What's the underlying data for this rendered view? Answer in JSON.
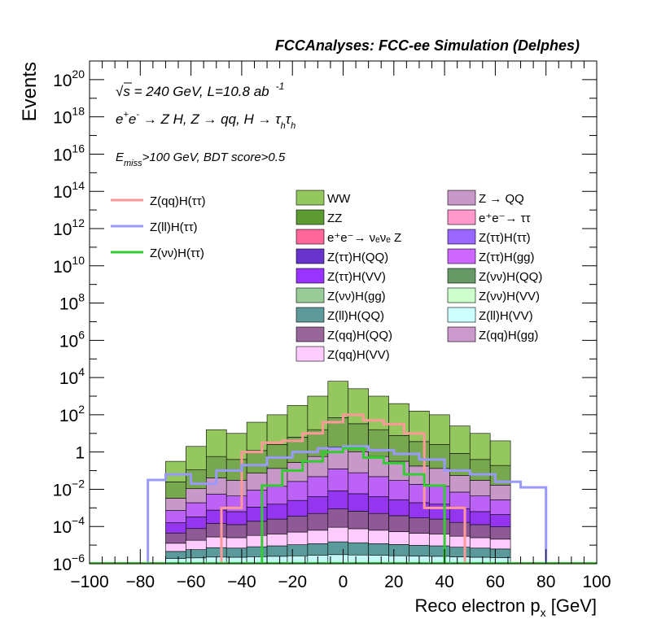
{
  "chart_data": {
    "type": "bar",
    "title": "FCCAnalyses: FCC-ee Simulation (Delphes)",
    "xlabel": "Reco electron p",
    "xlabel_sub": "x",
    "xlabel_unit": "[GeV]",
    "ylabel": "Events",
    "log_y": true,
    "xlim": [
      -100,
      100
    ],
    "ylim_exp": [
      -6,
      21
    ],
    "x_ticks": [
      -100,
      -80,
      -60,
      -40,
      -20,
      0,
      20,
      40,
      60,
      80,
      100
    ],
    "y_ticks": [
      {
        "label": "10",
        "sup": "−6",
        "exp": -6
      },
      {
        "label": "10",
        "sup": "−4",
        "exp": -4
      },
      {
        "label": "10",
        "sup": "−2",
        "exp": -2
      },
      {
        "label": "1",
        "sup": "",
        "exp": 0
      },
      {
        "label": "10",
        "sup": "2",
        "exp": 2
      },
      {
        "label": "10",
        "sup": "4",
        "exp": 4
      },
      {
        "label": "10",
        "sup": "6",
        "exp": 6
      },
      {
        "label": "10",
        "sup": "8",
        "exp": 8
      },
      {
        "label": "10",
        "sup": "10",
        "exp": 10
      },
      {
        "label": "10",
        "sup": "12",
        "exp": 12
      },
      {
        "label": "10",
        "sup": "14",
        "exp": 14
      },
      {
        "label": "10",
        "sup": "16",
        "exp": 16
      },
      {
        "label": "10",
        "sup": "18",
        "exp": 18
      },
      {
        "label": "10",
        "sup": "20",
        "exp": 20
      }
    ],
    "annotations": {
      "energy": {
        "sqrt": "√s",
        "text": " = 240 GeV, L=10.8 ab",
        "sup": "-1"
      },
      "process": {
        "a": "e",
        "a_sup": "+",
        "b": "e",
        "b_sup": "-",
        "c": " → Z H, Z  → qq, H  → τ",
        "c_sub": "h",
        "d": "τ",
        "d_sub": "h"
      },
      "cut": {
        "a": "E",
        "a_sub": "miss",
        "b": ">100 GeV, BDT score>0.5"
      }
    },
    "bin_edges": [
      -70,
      -62,
      -54,
      -46,
      -38,
      -30,
      -22,
      -14,
      -6,
      2,
      10,
      18,
      26,
      34,
      42,
      50,
      58,
      66
    ],
    "stack": {
      "colors": [
        "#c4f8f8",
        "#5b9a9a",
        "#ffccff",
        "#8e5a96",
        "#9436f0",
        "#bc62f6",
        "#c798c8",
        "#77a850",
        "#94c85e"
      ],
      "totals_log10": [
        -0.5,
        0.3,
        1.2,
        1.0,
        1.6,
        2.0,
        2.5,
        3.0,
        3.8,
        3.4,
        3.0,
        2.6,
        2.2,
        2.0,
        1.4,
        1.0,
        0.6
      ],
      "layer_fractions": [
        0.05,
        0.12,
        0.2,
        0.3,
        0.4,
        0.52,
        0.64,
        0.8,
        1.0
      ]
    },
    "series": [
      {
        "name": "Z(qq)H(ττ)",
        "color": "#ff9999",
        "line_edges": [
          -48,
          -40,
          -32,
          -24,
          -16,
          -8,
          0,
          8,
          16,
          24,
          32,
          40,
          48
        ],
        "line_log10": [
          -3.0,
          0.0,
          0.5,
          0.6,
          1.0,
          1.6,
          2.0,
          1.7,
          1.5,
          1.0,
          -3.0,
          -3.0
        ]
      },
      {
        "name": "Z(ll)H(ττ)",
        "color": "#9999ff",
        "line_edges": [
          -77,
          -70,
          -60,
          -50,
          -40,
          -30,
          -20,
          -10,
          0,
          10,
          20,
          30,
          40,
          50,
          60,
          70,
          80
        ],
        "line_log10": [
          -1.5,
          -1.2,
          -1.7,
          -1.0,
          -0.7,
          -0.3,
          0.0,
          0.2,
          0.3,
          0.1,
          -0.1,
          -0.4,
          -1.0,
          -1.2,
          -1.6,
          -1.9
        ]
      },
      {
        "name": "Z(νν)H(ττ)",
        "color": "#33cc33",
        "line_edges": [
          -32,
          -24,
          -16,
          -8,
          0,
          8,
          16,
          24,
          32,
          40
        ],
        "line_log10": [
          -1.8,
          -1.0,
          -0.5,
          0.0,
          0.2,
          -0.3,
          -0.6,
          -1.2,
          -1.8
        ]
      }
    ],
    "legend_stack": [
      {
        "name": "WW",
        "color": "#94c85e"
      },
      {
        "name": "Z → QQ",
        "color": "#c798c8"
      },
      {
        "name": "ZZ",
        "color": "#5e9a32"
      },
      {
        "name": "e⁺e⁻→ ττ",
        "color": "#ff99cc"
      },
      {
        "name": "e⁺e⁻→ νₑνₑ Z",
        "color": "#ff6699"
      },
      {
        "name": "Z(ττ)H(ττ)",
        "color": "#9966ff"
      },
      {
        "name": "Z(ττ)H(QQ)",
        "color": "#6633cc"
      },
      {
        "name": "Z(ττ)H(gg)",
        "color": "#cc66ff"
      },
      {
        "name": "Z(ττ)H(VV)",
        "color": "#9933ff"
      },
      {
        "name": "Z(νν)H(QQ)",
        "color": "#669966"
      },
      {
        "name": "Z(νν)H(gg)",
        "color": "#99cc99"
      },
      {
        "name": "Z(νν)H(VV)",
        "color": "#ccffcc"
      },
      {
        "name": "Z(ll)H(QQ)",
        "color": "#5e9a9a"
      },
      {
        "name": "Z(ll)H(VV)",
        "color": "#ccffff"
      },
      {
        "name": "Z(qq)H(QQ)",
        "color": "#996699"
      },
      {
        "name": "Z(qq)H(gg)",
        "color": "#cc99cc"
      },
      {
        "name": "Z(qq)H(VV)",
        "color": "#ffccff"
      }
    ]
  }
}
